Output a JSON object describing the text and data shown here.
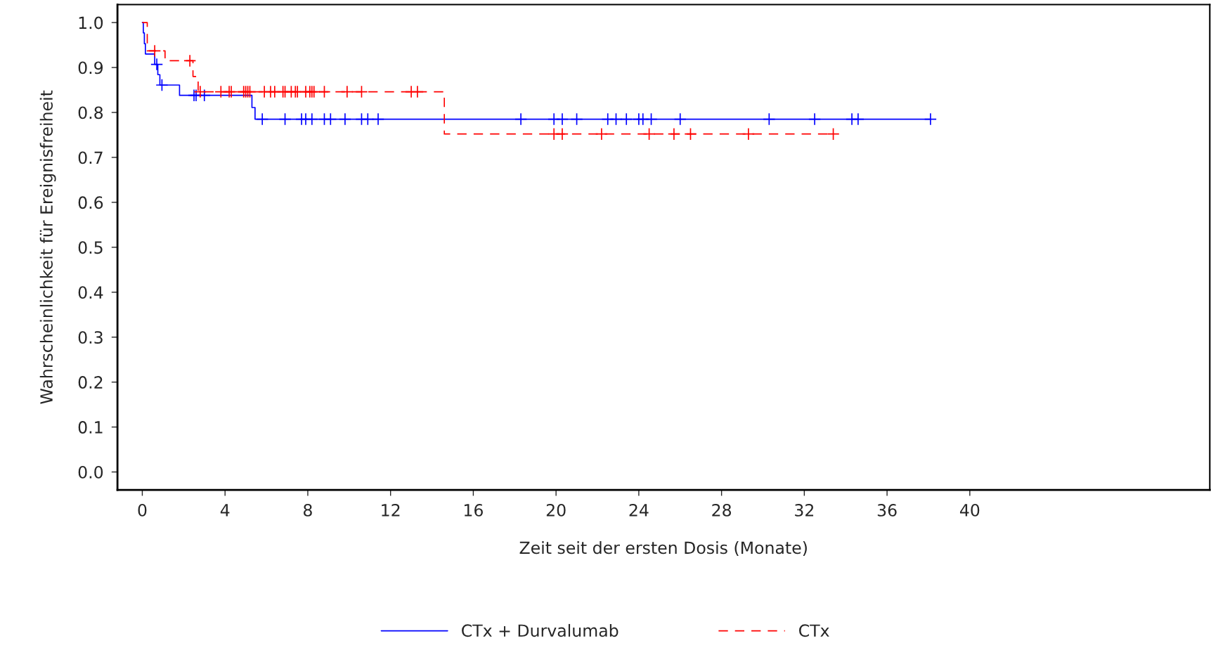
{
  "chart_data": {
    "type": "step",
    "xlabel": "Zeit seit der ersten Dosis (Monate)",
    "ylabel": "Wahrscheinlichkeit für Ereignisfreiheit",
    "xlim": [
      -1.2,
      51.6
    ],
    "ylim": [
      -0.04,
      1.04
    ],
    "xticks": [
      0,
      4,
      8,
      12,
      16,
      20,
      24,
      28,
      32,
      36,
      40
    ],
    "yticks": [
      {
        "value": 0,
        "label": "0.0"
      },
      {
        "value": 0.1,
        "label": "0.1"
      },
      {
        "value": 0.2,
        "label": "0.2"
      },
      {
        "value": 0.3,
        "label": "0.3"
      },
      {
        "value": 0.4,
        "label": "0.4"
      },
      {
        "value": 0.5,
        "label": "0.5"
      },
      {
        "value": 0.6,
        "label": "0.6"
      },
      {
        "value": 0.7,
        "label": "0.7"
      },
      {
        "value": 0.8,
        "label": "0.8"
      },
      {
        "value": 0.9,
        "label": "0.9"
      },
      {
        "value": 1,
        "label": "1.0"
      }
    ],
    "grid": false,
    "legend": "bottom",
    "series": [
      {
        "name": "CTx + Durvalumab",
        "color": "#0000ff",
        "line_style": "solid",
        "marker": "none",
        "x": [
          0,
          0.05,
          0.1,
          0.15,
          0.6,
          0.75,
          0.85,
          1.8,
          5.3,
          5.45,
          38.1
        ],
        "values": [
          1.0,
          0.977,
          0.953,
          0.93,
          0.907,
          0.884,
          0.861,
          0.838,
          0.811,
          0.785,
          0.785
        ]
      },
      {
        "name": "CTx",
        "color": "#ff0000",
        "line_style": "dashed",
        "marker": "none",
        "x": [
          0,
          0.24,
          1.1,
          2.45,
          2.7,
          14.6,
          33.4
        ],
        "values": [
          1.0,
          0.937,
          0.915,
          0.88,
          0.846,
          0.752,
          0.752
        ]
      },
      {
        "color": "#0000ff",
        "type": "scatter",
        "marker": "cross",
        "x": [
          0.7,
          0.95,
          2.5,
          2.6,
          3.0,
          5.8,
          6.9,
          7.7,
          7.9,
          8.2,
          8.8,
          9.1,
          9.8,
          10.6,
          10.9,
          11.4,
          18.3,
          19.9,
          20.3,
          21.0,
          22.5,
          22.9,
          23.4,
          24.0,
          24.2,
          24.6,
          26.0,
          30.3,
          32.5,
          34.3,
          34.6,
          38.1
        ],
        "values": [
          0.907,
          0.861,
          0.838,
          0.838,
          0.838,
          0.785,
          0.785,
          0.785,
          0.785,
          0.785,
          0.785,
          0.785,
          0.785,
          0.785,
          0.785,
          0.785,
          0.785,
          0.785,
          0.785,
          0.785,
          0.785,
          0.785,
          0.785,
          0.785,
          0.785,
          0.785,
          0.785,
          0.785,
          0.785,
          0.785,
          0.785,
          0.785
        ]
      },
      {
        "color": "#ff0000",
        "type": "scatter",
        "marker": "cross",
        "x": [
          0.6,
          2.3,
          2.8,
          3.8,
          4.2,
          4.3,
          4.9,
          5.0,
          5.1,
          5.2,
          5.9,
          6.2,
          6.4,
          6.8,
          6.9,
          7.2,
          7.4,
          7.5,
          7.9,
          8.1,
          8.2,
          8.3,
          8.8,
          9.9,
          10.6,
          13.0,
          13.3,
          19.9,
          20.3,
          22.2,
          24.5,
          25.7,
          26.5,
          29.3,
          33.4
        ],
        "values": [
          0.937,
          0.915,
          0.846,
          0.846,
          0.846,
          0.846,
          0.846,
          0.846,
          0.846,
          0.846,
          0.846,
          0.846,
          0.846,
          0.846,
          0.846,
          0.846,
          0.846,
          0.846,
          0.846,
          0.846,
          0.846,
          0.846,
          0.846,
          0.846,
          0.846,
          0.846,
          0.846,
          0.752,
          0.752,
          0.752,
          0.752,
          0.752,
          0.752,
          0.752,
          0.752
        ]
      }
    ]
  }
}
